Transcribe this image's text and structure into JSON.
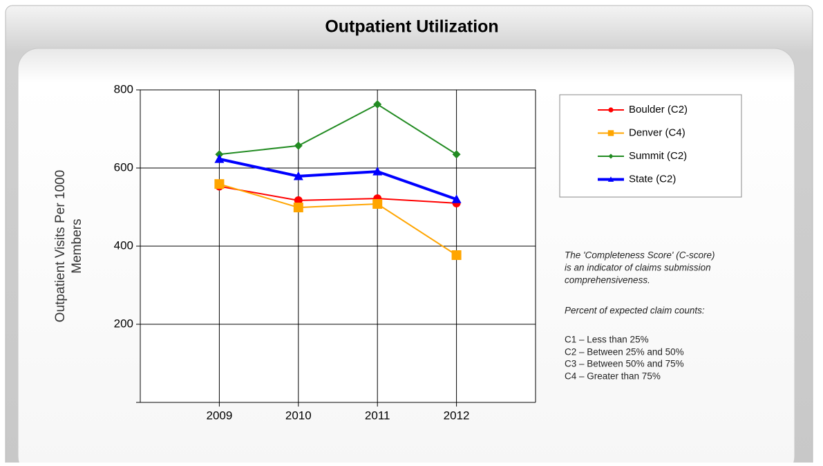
{
  "chart_data": {
    "type": "line",
    "title": "Outpatient Utilization",
    "y_label": [
      "Outpatient Visits Per 1000",
      "Members"
    ],
    "categories": [
      "2009",
      "2010",
      "2011",
      "2012"
    ],
    "series": [
      {
        "name": "Boulder (C2)",
        "color": "#ff0000",
        "marker": "circle",
        "linewidth": 2,
        "values": [
          553,
          517,
          522,
          510
        ]
      },
      {
        "name": "Denver (C4)",
        "color": "#ffa500",
        "marker": "square",
        "linewidth": 2,
        "values": [
          559,
          499,
          508,
          377
        ]
      },
      {
        "name": "Summit (C2)",
        "color": "#228b22",
        "marker": "diamond",
        "linewidth": 2,
        "values": [
          635,
          657,
          763,
          635
        ]
      },
      {
        "name": "State (C2)",
        "color": "#0000ff",
        "marker": "triangle",
        "linewidth": 4,
        "values": [
          623,
          579,
          591,
          520
        ]
      }
    ],
    "ylim": [
      0,
      800
    ],
    "yticks": [
      200,
      400,
      600,
      800
    ],
    "grid": true,
    "notes": [
      "The 'Completeness Score' (C-score)",
      "is an indicator of claims submission",
      "comprehensiveness.",
      "Percent of expected claim counts:",
      "C1 – Less than 25%",
      "C2 – Between 25% and 50%",
      "C3 – Between 50% and 75%",
      "C4 – Greater than 75%"
    ]
  }
}
